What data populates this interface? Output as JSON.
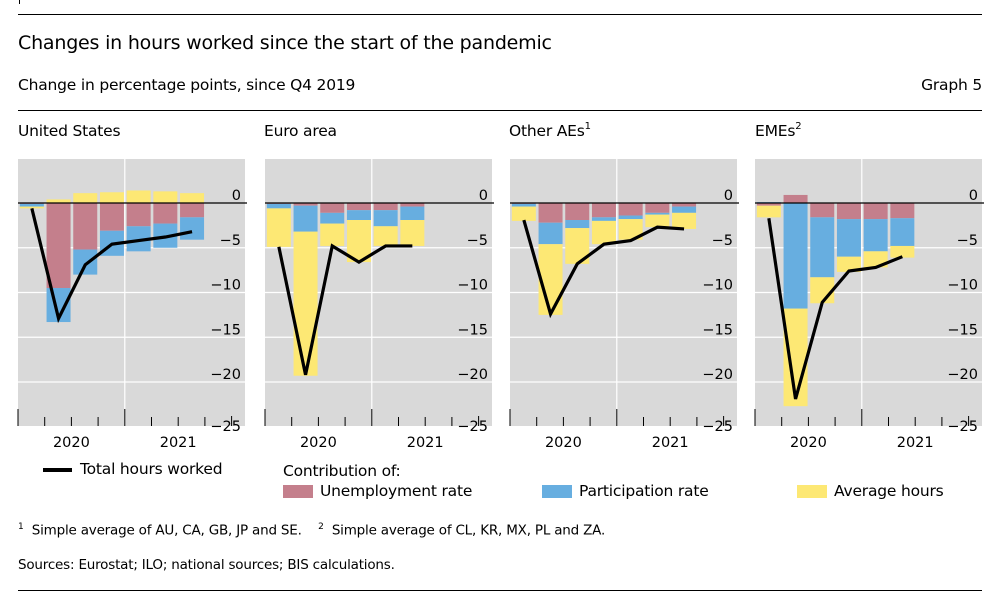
{
  "header": {
    "title": "Changes in hours worked since the start of the pandemic",
    "subtitle": "Change in percentage points, since Q4 2019",
    "graph_label": "Graph 5"
  },
  "panels": [
    {
      "title": "United States",
      "sup": ""
    },
    {
      "title": "Euro area",
      "sup": ""
    },
    {
      "title": "Other AEs",
      "sup": "1"
    },
    {
      "title": "EMEs",
      "sup": "2"
    }
  ],
  "legend": {
    "line_label": "Total hours worked",
    "contribution_heading": "Contribution of:",
    "unemployment": "Unemployment rate",
    "participation": "Participation rate",
    "average_hours": "Average hours"
  },
  "footnotes": {
    "note1_marker": "1",
    "note1": "Simple average of AU, CA, GB, JP and SE.",
    "note2_marker": "2",
    "note2": "Simple average of CL, KR, MX, PL and ZA.",
    "sources": "Sources: Eurostat; ILO; national sources; BIS calculations."
  },
  "colors": {
    "unemployment": "#c47f8c",
    "participation": "#67aee0",
    "average_hours": "#fde874",
    "line": "#000000",
    "plot_bg": "#d9d9d9",
    "grid": "#ffffff"
  },
  "chart_data": [
    {
      "type": "bar",
      "stacked": true,
      "title": "United States",
      "categories": [
        "Q1 2020",
        "Q2 2020",
        "Q3 2020",
        "Q4 2020",
        "Q1 2021",
        "Q2 2021",
        "Q3 2021"
      ],
      "x_tick_labels": [
        "2020",
        "2021"
      ],
      "y_ticks": [
        0,
        -5,
        -10,
        -15,
        -20,
        -25
      ],
      "ylim": [
        -25,
        5
      ],
      "grid": true,
      "series": [
        {
          "name": "Unemployment rate",
          "values": [
            -0.1,
            -9.5,
            -5.2,
            -3.1,
            -2.6,
            -2.3,
            -1.6
          ]
        },
        {
          "name": "Participation rate",
          "values": [
            -0.3,
            -3.8,
            -2.8,
            -2.8,
            -2.8,
            -2.7,
            -2.5
          ]
        },
        {
          "name": "Average hours",
          "values": [
            -0.2,
            0.4,
            1.1,
            1.2,
            1.4,
            1.3,
            1.1
          ]
        },
        {
          "name": "Total hours worked",
          "type": "line",
          "values": [
            -0.6,
            -12.9,
            -6.9,
            -4.6,
            -4.2,
            -3.8,
            -3.2
          ]
        }
      ]
    },
    {
      "type": "bar",
      "stacked": true,
      "title": "Euro area",
      "categories": [
        "Q1 2020",
        "Q2 2020",
        "Q3 2020",
        "Q4 2020",
        "Q1 2021",
        "Q2 2021"
      ],
      "x_tick_labels": [
        "2020",
        "2021"
      ],
      "y_ticks": [
        0,
        -5,
        -10,
        -15,
        -20,
        -25
      ],
      "ylim": [
        -25,
        5
      ],
      "grid": true,
      "series": [
        {
          "name": "Unemployment rate",
          "values": [
            -0.1,
            -0.3,
            -1.1,
            -0.8,
            -0.8,
            -0.4
          ]
        },
        {
          "name": "Participation rate",
          "values": [
            -0.5,
            -2.9,
            -1.2,
            -1.1,
            -1.8,
            -1.5
          ]
        },
        {
          "name": "Average hours",
          "values": [
            -4.3,
            -16.1,
            -2.5,
            -4.7,
            -2.2,
            -2.9
          ]
        },
        {
          "name": "Total hours worked",
          "type": "line",
          "values": [
            -4.9,
            -19.2,
            -4.8,
            -6.6,
            -4.8,
            -4.8
          ]
        }
      ]
    },
    {
      "type": "bar",
      "stacked": true,
      "title": "Other AEs",
      "categories": [
        "Q1 2020",
        "Q2 2020",
        "Q3 2020",
        "Q4 2020",
        "Q1 2021",
        "Q2 2021",
        "Q3 2021"
      ],
      "x_tick_labels": [
        "2020",
        "2021"
      ],
      "y_ticks": [
        0,
        -5,
        -10,
        -15,
        -20,
        -25
      ],
      "ylim": [
        -25,
        5
      ],
      "grid": true,
      "series": [
        {
          "name": "Unemployment rate",
          "values": [
            -0.1,
            -2.2,
            -1.9,
            -1.6,
            -1.4,
            -1.1,
            -0.4
          ]
        },
        {
          "name": "Participation rate",
          "values": [
            -0.3,
            -2.4,
            -0.9,
            -0.4,
            -0.4,
            -0.2,
            -0.7
          ]
        },
        {
          "name": "Average hours",
          "values": [
            -1.6,
            -7.9,
            -4.0,
            -2.6,
            -2.3,
            -1.4,
            -1.8
          ]
        },
        {
          "name": "Total hours worked",
          "type": "line",
          "values": [
            -1.9,
            -12.4,
            -6.8,
            -4.6,
            -4.2,
            -2.7,
            -2.9
          ]
        }
      ]
    },
    {
      "type": "bar",
      "stacked": true,
      "title": "EMEs",
      "categories": [
        "Q1 2020",
        "Q2 2020",
        "Q3 2020",
        "Q4 2020",
        "Q1 2021",
        "Q2 2021"
      ],
      "x_tick_labels": [
        "2020",
        "2021"
      ],
      "y_ticks": [
        0,
        -5,
        -10,
        -15,
        -20,
        -25
      ],
      "ylim": [
        -25,
        5
      ],
      "grid": true,
      "series": [
        {
          "name": "Unemployment rate",
          "values": [
            -0.3,
            0.9,
            -1.6,
            -1.8,
            -1.8,
            -1.7
          ]
        },
        {
          "name": "Participation rate",
          "values": [
            0.1,
            -11.8,
            -6.7,
            -4.2,
            -3.6,
            -3.1
          ]
        },
        {
          "name": "Average hours",
          "values": [
            -1.3,
            -10.9,
            -2.9,
            -1.7,
            -1.8,
            -1.3
          ]
        },
        {
          "name": "Total hours worked",
          "type": "line",
          "values": [
            -1.7,
            -21.9,
            -11.1,
            -7.6,
            -7.2,
            -6.0
          ]
        }
      ]
    }
  ]
}
